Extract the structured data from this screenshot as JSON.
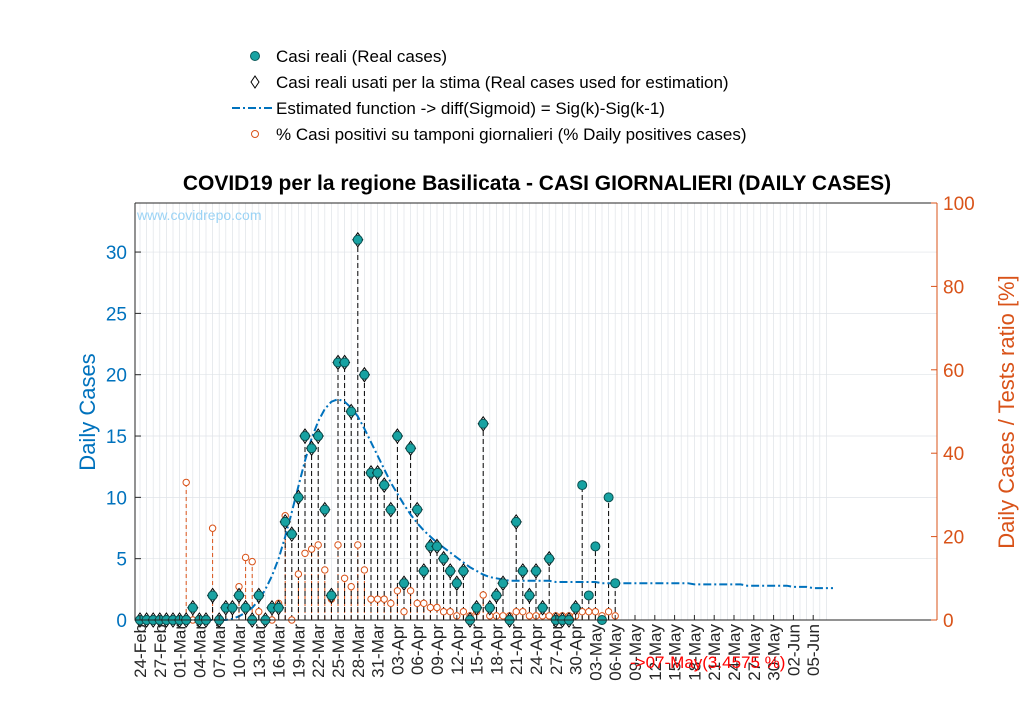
{
  "chart_data": {
    "type": "bar",
    "title": "COVID19 per la regione Basilicata - CASI GIORNALIERI (DAILY CASES)",
    "ylabel_left": "Daily Cases",
    "ylabel_right": "Daily Cases / Tests ratio [%]",
    "ylim_left": [
      0,
      34
    ],
    "ylim_right": [
      0,
      100
    ],
    "yticks_left": [
      "0",
      "5",
      "10",
      "15",
      "20",
      "25",
      "30"
    ],
    "yticks_right": [
      "0",
      "20",
      "40",
      "60",
      "80",
      "100"
    ],
    "watermark": "www.covidrepo.com",
    "annotation": "->07-May(3.4575 %)",
    "legend": [
      {
        "label": "Casi reali (Real cases)",
        "marker": "filled-circle"
      },
      {
        "label": "Casi reali usati per la stima (Real cases used for estimation)",
        "marker": "diamond"
      },
      {
        "label": "Estimated function -> diff(Sigmoid) = Sig(k)-Sig(k-1)",
        "marker": "dashdot-line"
      },
      {
        "label": "% Casi positivi su tamponi giornalieri (% Daily positives cases)",
        "marker": "open-circle"
      }
    ],
    "x_tick_labels": [
      "24-Feb",
      "27-Feb",
      "01-Mar",
      "04-Mar",
      "07-Mar",
      "10-Mar",
      "13-Mar",
      "16-Mar",
      "19-Mar",
      "22-Mar",
      "25-Mar",
      "28-Mar",
      "31-Mar",
      "03-Apr",
      "06-Apr",
      "09-Apr",
      "12-Apr",
      "15-Apr",
      "18-Apr",
      "21-Apr",
      "24-Apr",
      "27-Apr",
      "30-Apr",
      "03-May",
      "06-May",
      "09-May",
      "12-May",
      "15-May",
      "18-May",
      "21-May",
      "24-May",
      "27-May",
      "30-May",
      "02-Jun",
      "05-Jun"
    ],
    "num_days": 105,
    "daily_cases": [
      0,
      0,
      0,
      0,
      0,
      0,
      0,
      0,
      1,
      0,
      0,
      2,
      0,
      1,
      1,
      2,
      1,
      0,
      2,
      0,
      1,
      1,
      8,
      7,
      10,
      15,
      14,
      15,
      9,
      2,
      21,
      21,
      17,
      31,
      20,
      12,
      12,
      11,
      9,
      15,
      3,
      14,
      9,
      4,
      6,
      6,
      5,
      4,
      3,
      4,
      0,
      1,
      16,
      1,
      2,
      3,
      0,
      8,
      4,
      2,
      4,
      1,
      5,
      0,
      0,
      0,
      1,
      11,
      2,
      6,
      0,
      10,
      3
    ],
    "estimation_flags": [
      1,
      1,
      1,
      1,
      1,
      1,
      1,
      1,
      1,
      1,
      1,
      1,
      1,
      1,
      1,
      1,
      1,
      1,
      1,
      1,
      1,
      1,
      1,
      1,
      1,
      1,
      1,
      1,
      1,
      1,
      1,
      1,
      1,
      1,
      1,
      1,
      1,
      1,
      1,
      1,
      1,
      1,
      1,
      1,
      1,
      1,
      1,
      1,
      1,
      1,
      1,
      1,
      1,
      1,
      1,
      1,
      1,
      1,
      1,
      1,
      1,
      1,
      1,
      1,
      1,
      1,
      1,
      0,
      0,
      0,
      0,
      0,
      0
    ],
    "positive_ratio_pct": [
      0,
      0,
      0,
      0,
      0,
      0,
      0,
      33,
      0,
      0,
      0,
      22,
      0,
      3,
      3,
      8,
      15,
      14,
      2,
      0,
      0,
      4,
      25,
      0,
      11,
      16,
      17,
      18,
      12,
      5,
      18,
      10,
      8,
      18,
      12,
      5,
      5,
      5,
      4,
      7,
      2,
      7,
      4,
      4,
      3,
      3,
      2,
      2,
      1,
      2,
      1,
      2,
      6,
      1,
      1,
      1,
      1,
      2,
      2,
      1,
      1,
      1,
      1,
      1,
      1,
      1,
      1,
      2,
      2,
      2,
      1,
      2,
      1
    ],
    "estimated_function": [
      0,
      0,
      0,
      0,
      0,
      0,
      0,
      0,
      0,
      0,
      0,
      0,
      0,
      0,
      0.1,
      0.3,
      0.6,
      1.0,
      1.6,
      2.5,
      3.6,
      5.0,
      6.8,
      8.8,
      10.9,
      13.0,
      14.8,
      16.2,
      17.2,
      17.8,
      18.0,
      17.8,
      17.3,
      16.6,
      15.6,
      14.5,
      13.4,
      12.3,
      11.2,
      10.3,
      9.4,
      8.6,
      7.9,
      7.3,
      6.8,
      6.3,
      5.9,
      5.5,
      5.1,
      4.7,
      4.3,
      4.0,
      3.7,
      3.5,
      3.4,
      3.3,
      3.2,
      3.2,
      3.2,
      3.2,
      3.2,
      3.2,
      3.2,
      3.1,
      3.1,
      3.1,
      3.1,
      3.1,
      3.1,
      3.1,
      3.0,
      3.0,
      3.0,
      3.0,
      3.0,
      3.0,
      3.0,
      3.0,
      3.0,
      3.0,
      3.0,
      3.0,
      3.0,
      3.0,
      2.9,
      2.9,
      2.9,
      2.9,
      2.9,
      2.9,
      2.9,
      2.9,
      2.8,
      2.8,
      2.8,
      2.8,
      2.8,
      2.8,
      2.8,
      2.7,
      2.7,
      2.7,
      2.6,
      2.6,
      2.6,
      2.6
    ]
  }
}
